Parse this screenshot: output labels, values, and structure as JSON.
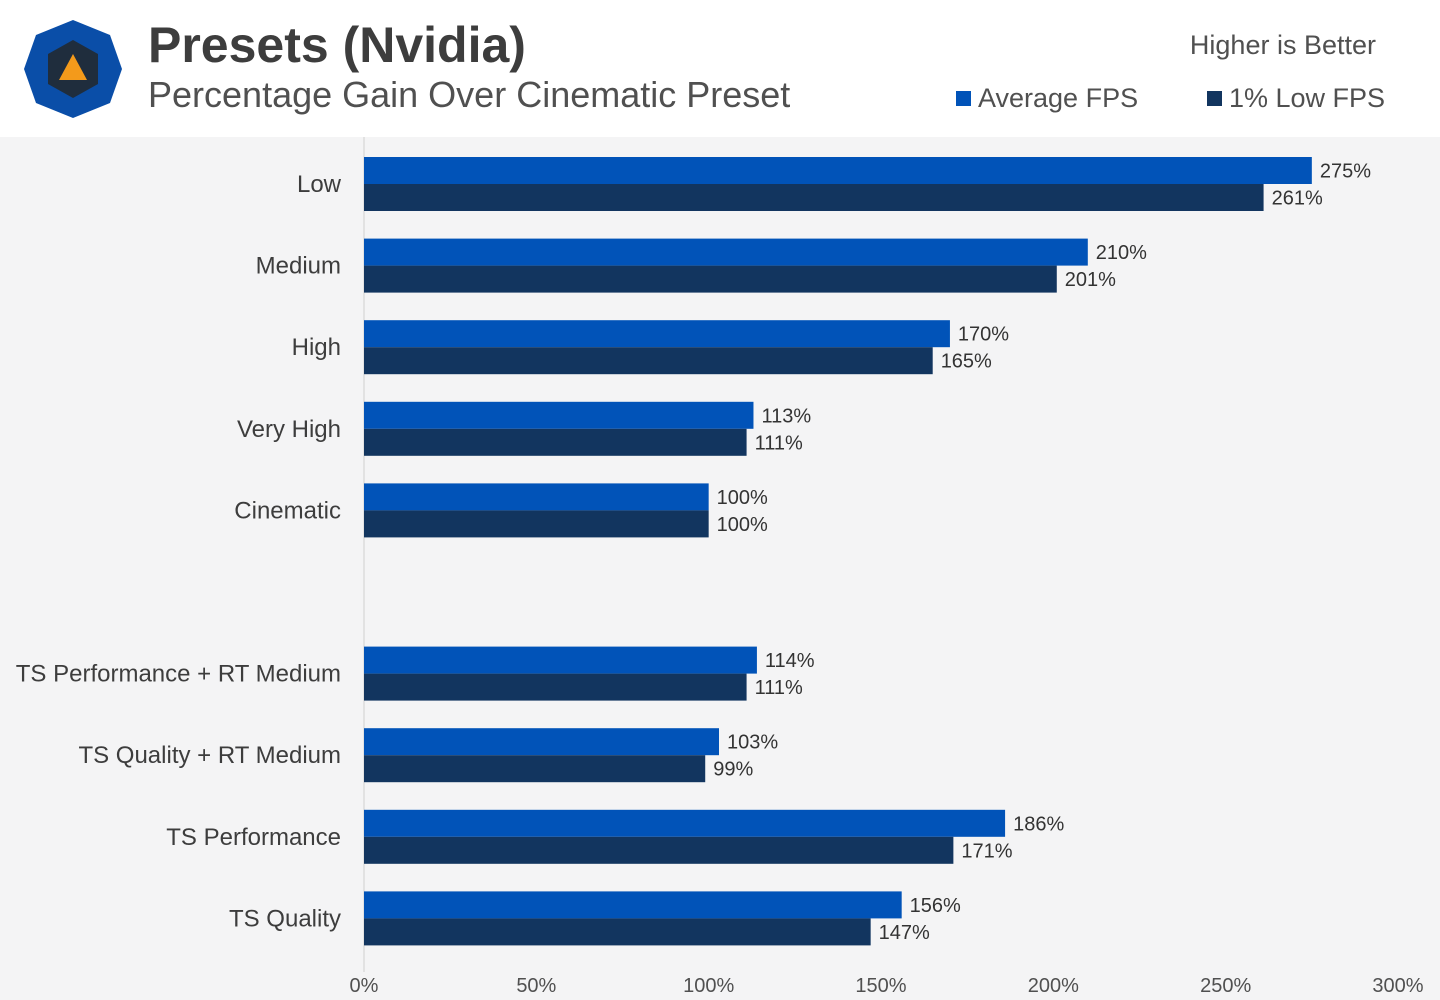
{
  "header": {
    "title": "Presets (Nvidia)",
    "subtitle": "Percentage Gain Over Cinematic Preset",
    "note": "Higher is Better"
  },
  "logo": {
    "icon": "hexagon-triangle-logo-icon",
    "color_outer": "#0a4ea8",
    "color_inner": "#1f2d3d",
    "color_triangle": "#f39a1b"
  },
  "legend": [
    {
      "label": "Average FPS",
      "color": "#0153b8"
    },
    {
      "label": "1% Low FPS",
      "color": "#12355f"
    }
  ],
  "chart_data": {
    "type": "bar",
    "orientation": "horizontal",
    "categories": [
      "Low",
      "Medium",
      "High",
      "Very High",
      "Cinematic",
      "",
      "TS Performance + RT Medium",
      "TS Quality + RT Medium",
      "TS Performance",
      "TS Quality"
    ],
    "series": [
      {
        "name": "Average FPS",
        "values": [
          275,
          210,
          170,
          113,
          100,
          null,
          114,
          103,
          186,
          156
        ],
        "color": "#0153b8"
      },
      {
        "name": "1% Low FPS",
        "values": [
          261,
          201,
          165,
          111,
          100,
          null,
          111,
          99,
          171,
          147
        ],
        "color": "#12355f"
      }
    ],
    "xlim": [
      0,
      300
    ],
    "xticks": [
      "0%",
      "50%",
      "100%",
      "150%",
      "200%",
      "250%",
      "300%"
    ],
    "value_suffix": "%",
    "grid": false,
    "legend_position": "top-right"
  }
}
